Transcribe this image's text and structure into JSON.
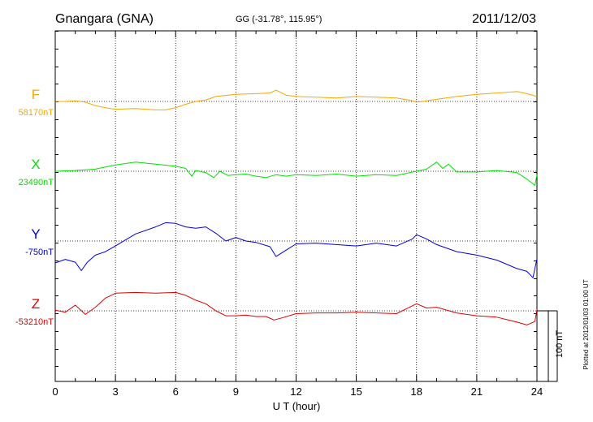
{
  "header": {
    "station": "Gnangara (GNA)",
    "coords": "GG (-31.78°, 115.95°)",
    "date": "2011/12/03"
  },
  "footer": {
    "plotted": "Plotted at 2012/01/03 01:00 UT"
  },
  "chart_data": {
    "type": "line",
    "xlabel": "U T (hour)",
    "xlim": [
      0,
      24
    ],
    "x_ticks": [
      "0",
      "3",
      "6",
      "9",
      "12",
      "15",
      "18",
      "21",
      "24"
    ],
    "scale_bar": {
      "label": "100 nT",
      "value_nT": 100
    },
    "grid": true,
    "series": [
      {
        "name": "F",
        "baseline_label": "58170nT",
        "baseline_nT": 58170,
        "color": "#f5a800",
        "x": [
          0,
          0.5,
          1,
          1.5,
          2,
          2.5,
          3,
          4,
          5,
          5.5,
          6,
          6.5,
          7,
          7.5,
          8,
          9,
          10,
          10.7,
          11,
          11.5,
          12,
          13,
          14,
          15,
          16,
          17,
          17.8,
          18,
          18.3,
          19,
          20,
          21,
          22,
          23,
          23.5,
          24
        ],
        "y": [
          58170,
          58170,
          58171,
          58169,
          58164,
          58161,
          58159,
          58160,
          58158,
          58158,
          58161,
          58166,
          58170,
          58172,
          58177,
          58180,
          58181,
          58182,
          58186,
          58179,
          58177,
          58176,
          58175,
          58177,
          58176,
          58175,
          58171,
          58169,
          58170,
          58173,
          58177,
          58180,
          58182,
          58184,
          58181,
          58177
        ]
      },
      {
        "name": "X",
        "baseline_label": "23490nT",
        "baseline_nT": 23490,
        "color": "#00e000",
        "x": [
          0,
          1,
          2,
          3,
          4,
          5,
          6,
          6.5,
          6.8,
          7,
          7.5,
          7.9,
          8.2,
          8.6,
          9,
          9.5,
          10,
          10.5,
          11,
          11.5,
          12,
          13,
          14,
          15,
          16,
          17,
          18,
          18.5,
          19,
          19.3,
          19.6,
          20,
          21,
          22,
          23,
          23.5,
          23.9,
          24
        ],
        "y": [
          23490,
          23491,
          23493,
          23499,
          23503,
          23500,
          23497,
          23494,
          23483,
          23491,
          23488,
          23481,
          23490,
          23484,
          23485,
          23486,
          23483,
          23481,
          23485,
          23483,
          23485,
          23484,
          23486,
          23483,
          23485,
          23484,
          23490,
          23493,
          23503,
          23494,
          23500,
          23489,
          23489,
          23491,
          23488,
          23479,
          23470,
          23485
        ]
      },
      {
        "name": "Y",
        "baseline_label": "-750nT",
        "baseline_nT": -750,
        "color": "#0000dd",
        "x": [
          0,
          0.5,
          1,
          1.3,
          1.6,
          2,
          2.5,
          3,
          4,
          5,
          5.5,
          6,
          6.5,
          7,
          7.5,
          8,
          8.5,
          9,
          9.5,
          10,
          10.7,
          11,
          11.5,
          12,
          13,
          14,
          15,
          16,
          17,
          17.8,
          18,
          18.5,
          19,
          20,
          21,
          22,
          23,
          23.5,
          23.8,
          24
        ],
        "y": [
          -781,
          -776,
          -780,
          -792,
          -780,
          -770,
          -765,
          -757,
          -740,
          -730,
          -724,
          -725,
          -730,
          -732,
          -730,
          -739,
          -750,
          -745,
          -750,
          -752,
          -758,
          -772,
          -763,
          -754,
          -753,
          -755,
          -757,
          -753,
          -757,
          -747,
          -741,
          -747,
          -755,
          -765,
          -770,
          -777,
          -789,
          -793,
          -802,
          -775
        ]
      },
      {
        "name": "Z",
        "baseline_label": "-53210nT",
        "baseline_nT": -53210,
        "color": "#e00000",
        "x": [
          0,
          0.5,
          1,
          1.5,
          2,
          2.5,
          3,
          4,
          5,
          6,
          6.5,
          7,
          7.5,
          8,
          8.5,
          9,
          9.5,
          10,
          10.5,
          10.9,
          11.3,
          12,
          13,
          14,
          15,
          16,
          17,
          17.5,
          18,
          18.5,
          19,
          20,
          21,
          22,
          23,
          23.5,
          23.9,
          24
        ],
        "y": [
          -53209,
          -53212,
          -53202,
          -53215,
          -53205,
          -53192,
          -53185,
          -53184,
          -53185,
          -53184,
          -53188,
          -53195,
          -53200,
          -53210,
          -53217,
          -53217,
          -53216,
          -53218,
          -53218,
          -53223,
          -53220,
          -53214,
          -53213,
          -53213,
          -53212,
          -53213,
          -53214,
          -53207,
          -53200,
          -53206,
          -53205,
          -53213,
          -53217,
          -53219,
          -53226,
          -53230,
          -53225,
          -53208
        ]
      }
    ]
  }
}
